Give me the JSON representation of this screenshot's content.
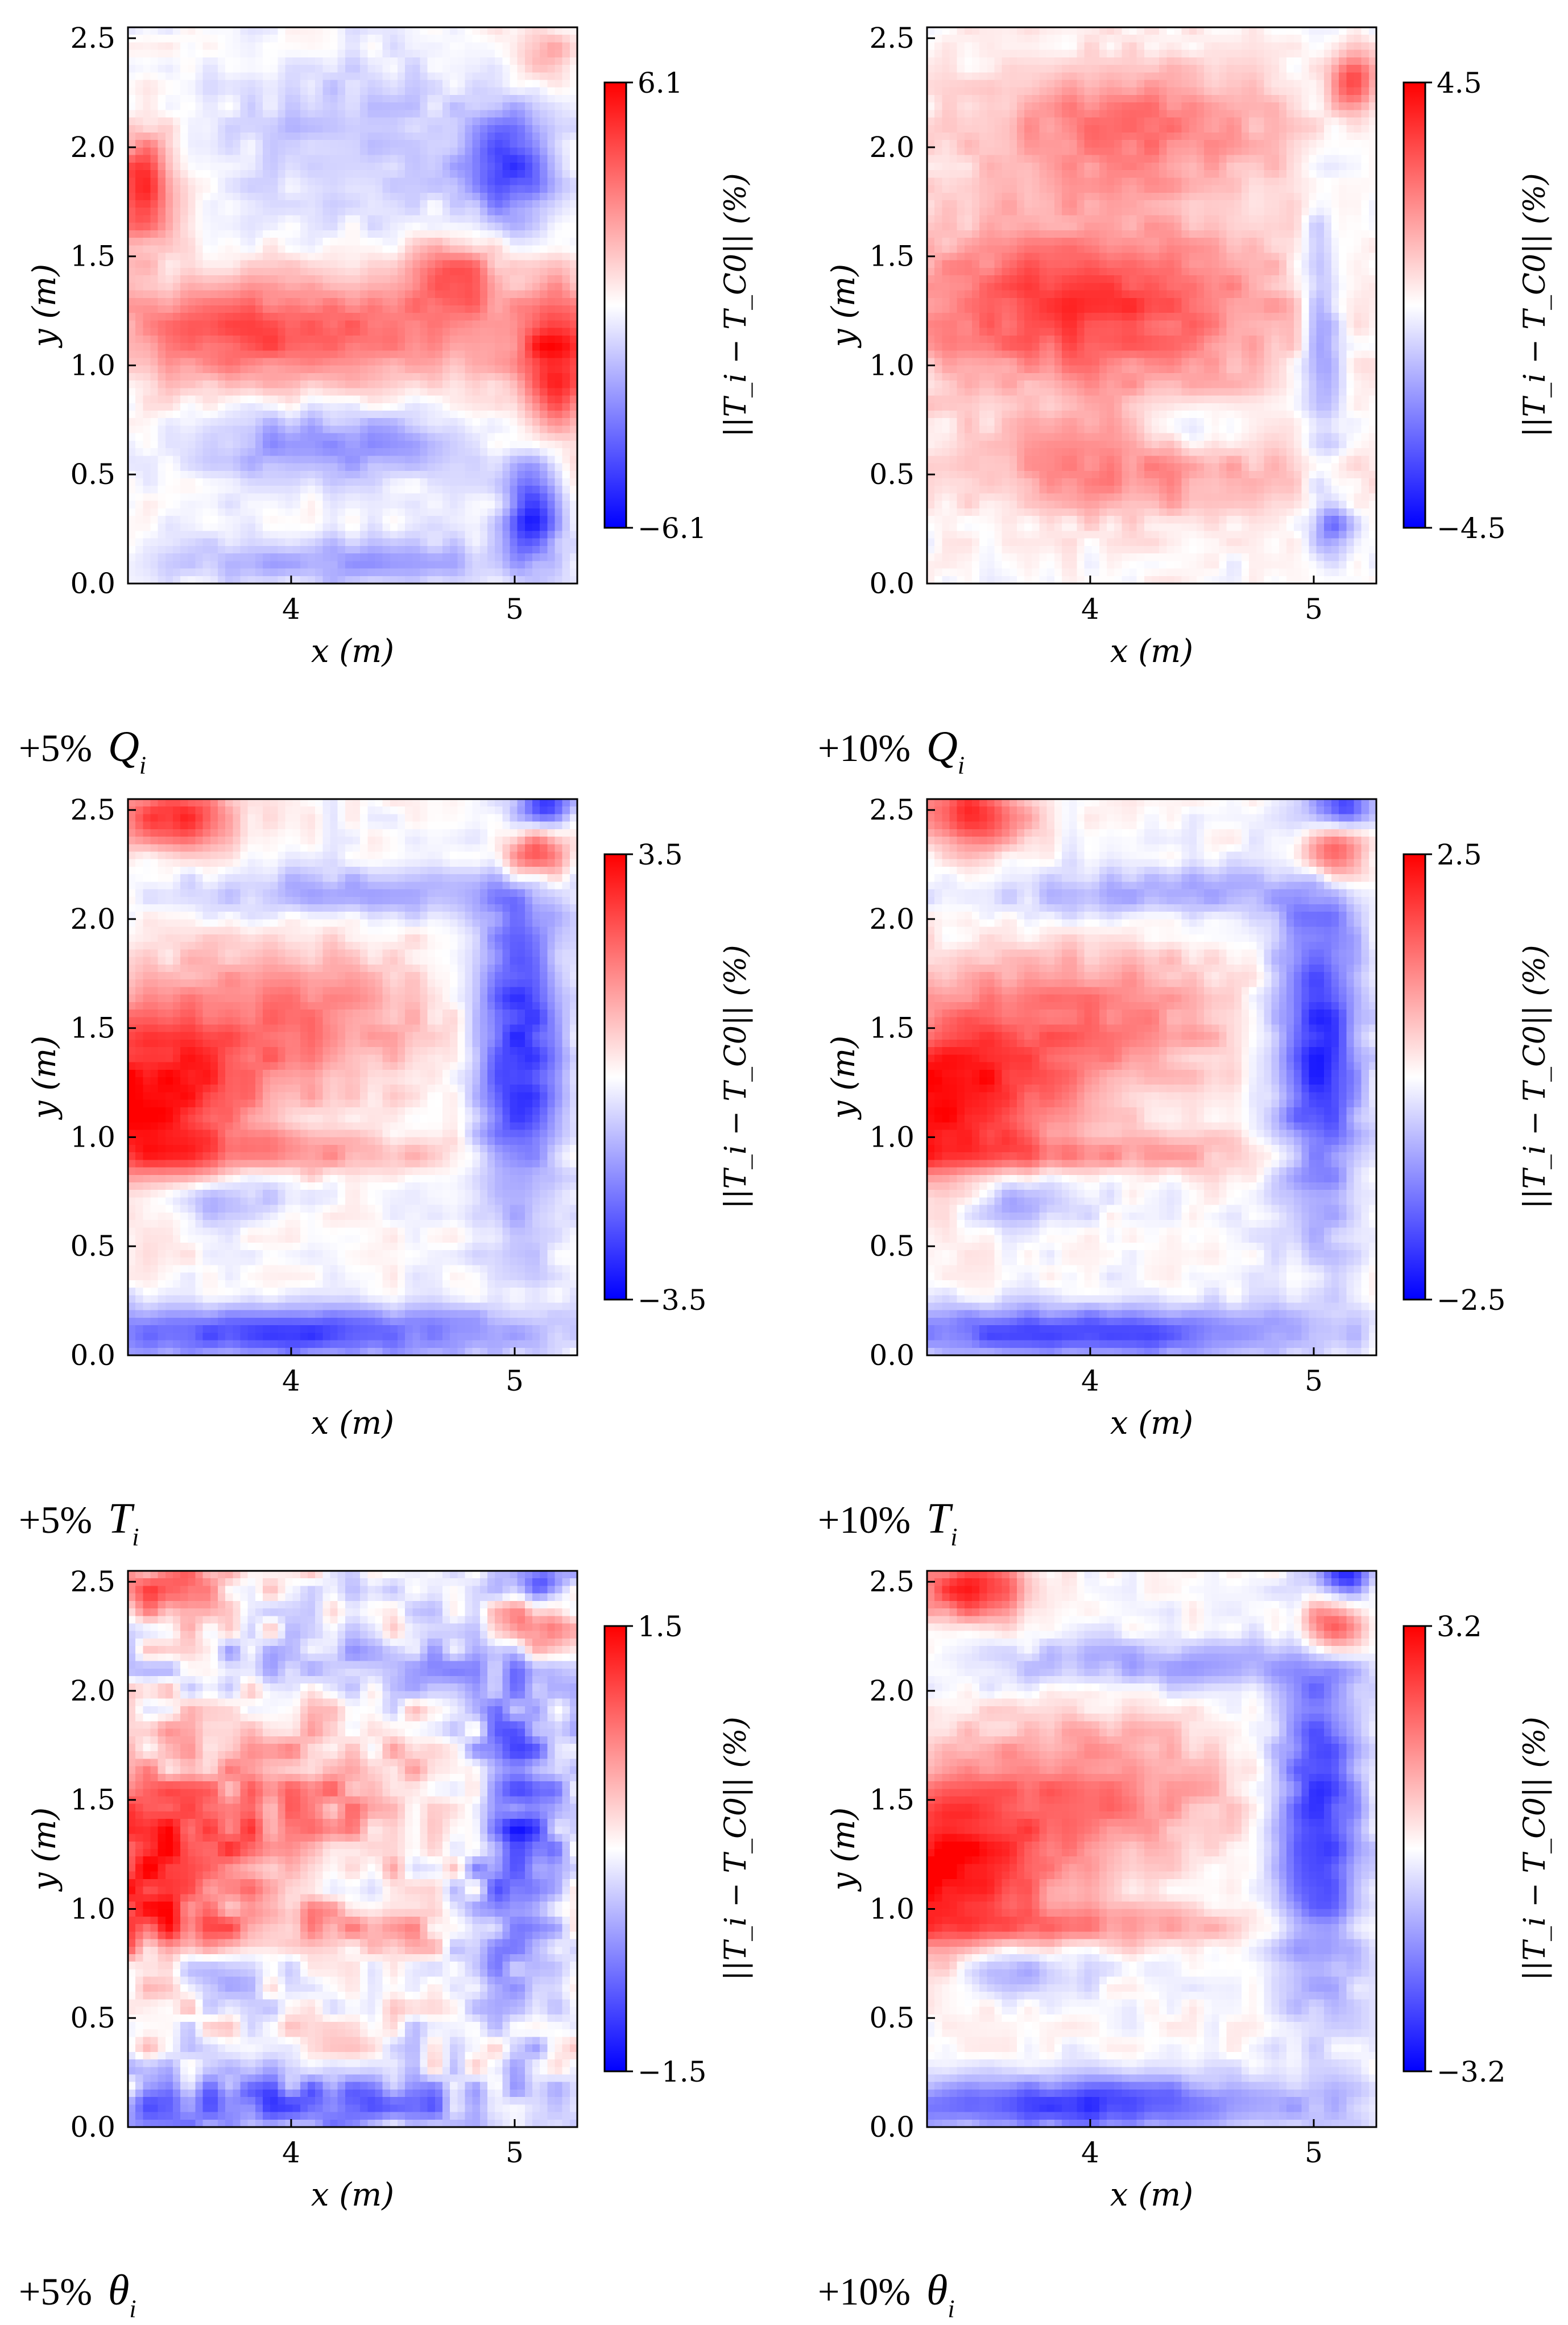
{
  "chart_data": [
    {
      "type": "heatmap",
      "panel": "top-left",
      "caption": {
        "prefix": "+5%",
        "variable": "Q",
        "subscript": "i"
      },
      "xlabel": "x (m)",
      "ylabel": "y (m)",
      "xlim": [
        3.27,
        5.28
      ],
      "ylim": [
        0.0,
        2.55
      ],
      "xticks": [
        "4",
        "5"
      ],
      "yticks": [
        "0.0",
        "0.5",
        "1.0",
        "1.5",
        "2.0",
        "2.5"
      ],
      "colorbar": {
        "label": "||T_i − T_C0|| (%)",
        "vmin": -6.1,
        "vmax": 6.1,
        "min_label": "−6.1",
        "max_label": "6.1",
        "cmap": "bwr"
      },
      "field": "Qi5"
    },
    {
      "type": "heatmap",
      "panel": "top-right",
      "caption": {
        "prefix": "+10%",
        "variable": "Q",
        "subscript": "i"
      },
      "xlabel": "x (m)",
      "ylabel": "y (m)",
      "xlim": [
        3.27,
        5.28
      ],
      "ylim": [
        0.0,
        2.55
      ],
      "xticks": [
        "4",
        "5"
      ],
      "yticks": [
        "0.0",
        "0.5",
        "1.0",
        "1.5",
        "2.0",
        "2.5"
      ],
      "colorbar": {
        "label": "||T_i − T_C0|| (%)",
        "vmin": -4.5,
        "vmax": 4.5,
        "min_label": "−4.5",
        "max_label": "4.5",
        "cmap": "bwr"
      },
      "field": "Qi10"
    },
    {
      "type": "heatmap",
      "panel": "middle-left",
      "caption": {
        "prefix": "+5%",
        "variable": "T",
        "subscript": "i"
      },
      "xlabel": "x (m)",
      "ylabel": "y (m)",
      "xlim": [
        3.27,
        5.28
      ],
      "ylim": [
        0.0,
        2.55
      ],
      "xticks": [
        "4",
        "5"
      ],
      "yticks": [
        "0.0",
        "0.5",
        "1.0",
        "1.5",
        "2.0",
        "2.5"
      ],
      "colorbar": {
        "label": "||T_i − T_C0|| (%)",
        "vmin": -3.5,
        "vmax": 3.5,
        "min_label": "−3.5",
        "max_label": "3.5",
        "cmap": "bwr"
      },
      "field": "Ti"
    },
    {
      "type": "heatmap",
      "panel": "middle-right",
      "caption": {
        "prefix": "+10%",
        "variable": "T",
        "subscript": "i"
      },
      "xlabel": "x (m)",
      "ylabel": "y (m)",
      "xlim": [
        3.27,
        5.28
      ],
      "ylim": [
        0.0,
        2.55
      ],
      "xticks": [
        "4",
        "5"
      ],
      "yticks": [
        "0.0",
        "0.5",
        "1.0",
        "1.5",
        "2.0",
        "2.5"
      ],
      "colorbar": {
        "label": "||T_i − T_C0|| (%)",
        "vmin": -2.5,
        "vmax": 2.5,
        "min_label": "−2.5",
        "max_label": "2.5",
        "cmap": "bwr"
      },
      "field": "Ti"
    },
    {
      "type": "heatmap",
      "panel": "bottom-left",
      "caption": {
        "prefix": "+5%",
        "variable": "θ",
        "subscript": "i"
      },
      "xlabel": "x (m)",
      "ylabel": "y (m)",
      "xlim": [
        3.27,
        5.28
      ],
      "ylim": [
        0.0,
        2.55
      ],
      "xticks": [
        "4",
        "5"
      ],
      "yticks": [
        "0.0",
        "0.5",
        "1.0",
        "1.5",
        "2.0",
        "2.5"
      ],
      "colorbar": {
        "label": "||T_i − T_C0|| (%)",
        "vmin": -1.5,
        "vmax": 1.5,
        "min_label": "−1.5",
        "max_label": "1.5",
        "cmap": "bwr"
      },
      "field": "thetaNoisy"
    },
    {
      "type": "heatmap",
      "panel": "bottom-right",
      "caption": {
        "prefix": "+10%",
        "variable": "θ",
        "subscript": "i"
      },
      "xlabel": "x (m)",
      "ylabel": "y (m)",
      "xlim": [
        3.27,
        5.28
      ],
      "ylim": [
        0.0,
        2.55
      ],
      "xticks": [
        "4",
        "5"
      ],
      "yticks": [
        "0.0",
        "0.5",
        "1.0",
        "1.5",
        "2.0",
        "2.5"
      ],
      "colorbar": {
        "label": "||T_i − T_C0|| (%)",
        "vmin": -3.2,
        "vmax": 3.2,
        "min_label": "−3.2",
        "max_label": "3.2",
        "cmap": "bwr"
      },
      "field": "Ti"
    }
  ],
  "colors": {
    "positive": "#ff0000",
    "neutral": "#ffffff",
    "negative": "#0000ff",
    "axis": "#000000"
  }
}
